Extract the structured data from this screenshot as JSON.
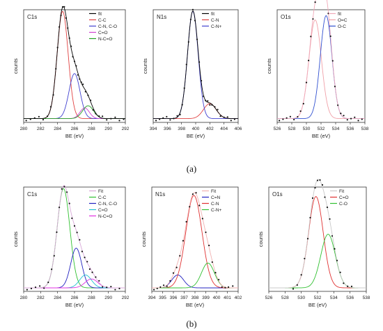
{
  "figure_labels": [
    "(a)",
    "(b)"
  ],
  "chart_data": [
    {
      "id": "a-c1s",
      "type": "line",
      "title": "C1s",
      "xlabel": "BE (eV)",
      "ylabel": "counts",
      "xlim": [
        280,
        292
      ],
      "ylim": [
        0,
        1.05
      ],
      "xticks": [
        "280",
        "282",
        "284",
        "286",
        "288",
        "290",
        "292"
      ],
      "series": [
        {
          "name": "fit",
          "color": "#000000",
          "kind": "sum"
        },
        {
          "name": "C-C",
          "color": "#e04040",
          "center": 284.6,
          "amp": 1.0,
          "width": 0.65
        },
        {
          "name": "C-N, C-O",
          "color": "#4040d0",
          "center": 286.0,
          "amp": 0.42,
          "width": 0.65
        },
        {
          "name": "C=O",
          "color": "#d040d0",
          "center": 287.2,
          "amp": 0.1,
          "width": 0.55
        },
        {
          "name": "N-C=O",
          "color": "#20a020",
          "center": 287.6,
          "amp": 0.12,
          "width": 0.65
        }
      ],
      "points_x": [
        280.3,
        280.8,
        281.3,
        281.8,
        282.3,
        282.8,
        283.2,
        283.5,
        283.8,
        284.0,
        284.2,
        284.4,
        284.6,
        284.8,
        285.0,
        285.2,
        285.4,
        285.6,
        285.8,
        286.0,
        286.2,
        286.4,
        286.6,
        286.8,
        287.0,
        287.3,
        287.6,
        287.9,
        288.2,
        288.5,
        288.9,
        289.3,
        289.8,
        290.3,
        290.8,
        291.3,
        291.8
      ]
    },
    {
      "id": "a-n1s",
      "type": "line",
      "title": "N1s",
      "xlabel": "BE (eV)",
      "ylabel": "counts",
      "xlim": [
        394,
        406
      ],
      "ylim": [
        0,
        1.05
      ],
      "xticks": [
        "394",
        "396",
        "398",
        "400",
        "402",
        "404",
        "406"
      ],
      "series": [
        {
          "name": "fit",
          "color": "#000000",
          "kind": "sum"
        },
        {
          "name": "C-N",
          "color": "#e04040",
          "center": 402.0,
          "amp": 0.14,
          "width": 0.9
        },
        {
          "name": "C-N+",
          "color": "#4040d0",
          "center": 399.6,
          "amp": 1.0,
          "width": 0.75
        }
      ],
      "points_x": [
        394.4,
        394.9,
        395.4,
        395.9,
        396.4,
        396.9,
        397.4,
        397.8,
        398.1,
        398.4,
        398.7,
        399.0,
        399.3,
        399.6,
        399.9,
        400.2,
        400.5,
        400.8,
        401.1,
        401.4,
        401.7,
        402.0,
        402.3,
        402.7,
        403.1,
        403.5,
        404.0,
        404.5,
        405.0,
        405.5
      ]
    },
    {
      "id": "a-o1s",
      "type": "line",
      "title": "O1s",
      "xlabel": "BE (eV)",
      "ylabel": "counts",
      "xlim": [
        526,
        538
      ],
      "ylim": [
        0,
        1.05
      ],
      "xticks": [
        "526",
        "528",
        "530",
        "532",
        "534",
        "536",
        "538"
      ],
      "series": [
        {
          "name": "fit",
          "color": "#f0a8b8",
          "kind": "sum"
        },
        {
          "name": "O=C",
          "color": "#f0a0a8",
          "center": 531.2,
          "amp": 0.92,
          "width": 0.85
        },
        {
          "name": "O-C",
          "color": "#3050d0",
          "center": 532.7,
          "amp": 0.96,
          "width": 0.8
        }
      ],
      "points_x": [
        526.3,
        526.8,
        527.3,
        527.8,
        528.3,
        528.8,
        529.2,
        529.6,
        530.0,
        530.3,
        530.6,
        530.9,
        531.2,
        531.5,
        531.8,
        532.1,
        532.4,
        532.7,
        533.0,
        533.3,
        533.6,
        533.9,
        534.3,
        534.7,
        535.1,
        535.6,
        536.1,
        536.6,
        537.1,
        537.6
      ]
    },
    {
      "id": "b-c1s",
      "type": "line",
      "title": "C1s",
      "xlabel": "BE (eV)",
      "ylabel": "counts",
      "xlim": [
        280,
        292
      ],
      "ylim": [
        0,
        1.05
      ],
      "xticks": [
        "280",
        "282",
        "284",
        "286",
        "288",
        "290",
        "292"
      ],
      "series": [
        {
          "name": "Fit",
          "color": "#d8a8d8",
          "kind": "sum"
        },
        {
          "name": "C-C",
          "color": "#30c030",
          "center": 284.7,
          "amp": 1.0,
          "width": 0.75
        },
        {
          "name": "C-N, C-O",
          "color": "#2020c0",
          "center": 286.2,
          "amp": 0.4,
          "width": 0.65
        },
        {
          "name": "C=O",
          "color": "#20c0d0",
          "center": 287.3,
          "amp": 0.13,
          "width": 0.7
        },
        {
          "name": "N-C=O",
          "color": "#e030e0",
          "center": 288.0,
          "amp": 0.09,
          "width": 0.75
        }
      ],
      "points_x": [
        280.4,
        280.9,
        281.4,
        281.9,
        282.4,
        282.9,
        283.3,
        283.6,
        283.9,
        284.2,
        284.5,
        284.8,
        285.1,
        285.4,
        285.7,
        286.0,
        286.3,
        286.6,
        286.9,
        287.2,
        287.5,
        287.8,
        288.1,
        288.5,
        288.9,
        289.3,
        289.8,
        290.3,
        290.8,
        291.3
      ]
    },
    {
      "id": "b-n1s",
      "type": "line",
      "title": "N1s",
      "xlabel": "BE (eV)",
      "ylabel": "counts",
      "xlim": [
        394,
        402
      ],
      "ylim": [
        0,
        1.05
      ],
      "xticks": [
        "394",
        "395",
        "396",
        "397",
        "398",
        "399",
        "400",
        "401",
        "402"
      ],
      "series": [
        {
          "name": "Fit",
          "color": "#f0b0b0",
          "kind": "sum"
        },
        {
          "name": "C=N",
          "color": "#2020c0",
          "center": 396.4,
          "amp": 0.13,
          "width": 0.55
        },
        {
          "name": "C-N",
          "color": "#e03030",
          "center": 397.9,
          "amp": 0.93,
          "width": 0.75
        },
        {
          "name": "C-N+",
          "color": "#30c030",
          "center": 399.2,
          "amp": 0.25,
          "width": 0.6
        }
      ],
      "points_x": [
        394.2,
        394.5,
        394.8,
        395.1,
        395.4,
        395.7,
        396.0,
        396.3,
        396.6,
        396.9,
        397.2,
        397.5,
        397.8,
        398.1,
        398.4,
        398.7,
        399.0,
        399.3,
        399.6,
        399.9,
        400.2,
        400.5,
        400.8,
        401.1,
        401.5
      ]
    },
    {
      "id": "b-o1s",
      "type": "line",
      "title": "O1s",
      "xlabel": "BE (eV)",
      "ylabel": "counts",
      "xlim": [
        526,
        538
      ],
      "ylim": [
        0,
        1.05
      ],
      "xticks": [
        "526",
        "528",
        "530",
        "532",
        "534",
        "536",
        "538"
      ],
      "series": [
        {
          "name": "Fit",
          "color": "#c8c8c8",
          "kind": "sum"
        },
        {
          "name": "C=O",
          "color": "#e03030",
          "center": 531.8,
          "amp": 0.92,
          "width": 0.9
        },
        {
          "name": "C-O",
          "color": "#30c030",
          "center": 533.3,
          "amp": 0.54,
          "width": 0.9
        }
      ],
      "points_x": [
        529.0,
        529.5,
        530.0,
        530.4,
        530.8,
        531.1,
        531.4,
        531.7,
        532.0,
        532.3,
        532.6,
        532.9,
        533.2,
        533.5,
        533.8,
        534.1,
        534.4,
        534.8,
        535.2,
        535.7,
        536.2
      ]
    }
  ]
}
